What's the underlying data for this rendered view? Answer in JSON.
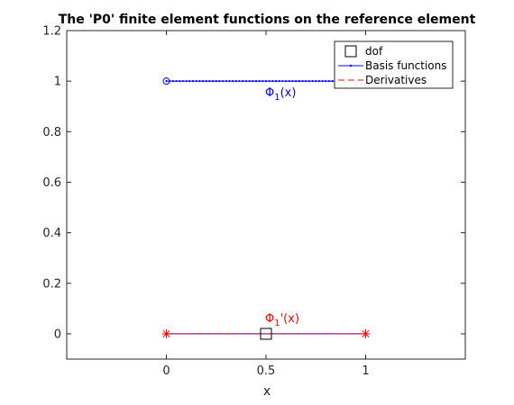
{
  "chart_data": {
    "type": "line",
    "title": "The 'P0' finite element functions on the reference element",
    "xlabel": "x",
    "ylabel": "",
    "xlim": [
      -0.5,
      1.5
    ],
    "ylim": [
      -0.1,
      1.2
    ],
    "xticks": [
      0,
      0.5,
      1
    ],
    "xtick_labels": [
      "0",
      "0.5",
      "1"
    ],
    "yticks": [
      0,
      0.2,
      0.4,
      0.6,
      0.8,
      1,
      1.2
    ],
    "ytick_labels": [
      "0",
      "0.2",
      "0.4",
      "0.6",
      "0.8",
      "1",
      "1.2"
    ],
    "grid": false,
    "legend_position": "top-right",
    "legend": [
      {
        "label": "dof",
        "marker": "square",
        "color": "#000000"
      },
      {
        "label": "Basis functions",
        "marker": "line-dot",
        "color": "#0000ff"
      },
      {
        "label": "Derivatives",
        "marker": "dashed",
        "color": "#ff0000"
      }
    ],
    "series": [
      {
        "name": "Basis functions",
        "color": "#0000ff",
        "x": [
          0,
          1
        ],
        "y": [
          1,
          1
        ],
        "start_marker": "circle"
      },
      {
        "name": "Derivatives",
        "color": "#ff0000",
        "x": [
          0,
          1
        ],
        "y": [
          0,
          0
        ],
        "end_markers": "asterisk"
      }
    ],
    "dof": [
      {
        "x": 0.5,
        "y": 0
      }
    ],
    "annotations": [
      {
        "base": "Φ",
        "sub": "1",
        "suffix": "(x)",
        "x": 0.5,
        "y": 1,
        "color": "#0000ff",
        "position": "below"
      },
      {
        "base": "Φ",
        "sub": "1",
        "suffix": "'(x)",
        "x": 0.5,
        "y": 0,
        "color": "#ff0000",
        "position": "above"
      }
    ]
  }
}
